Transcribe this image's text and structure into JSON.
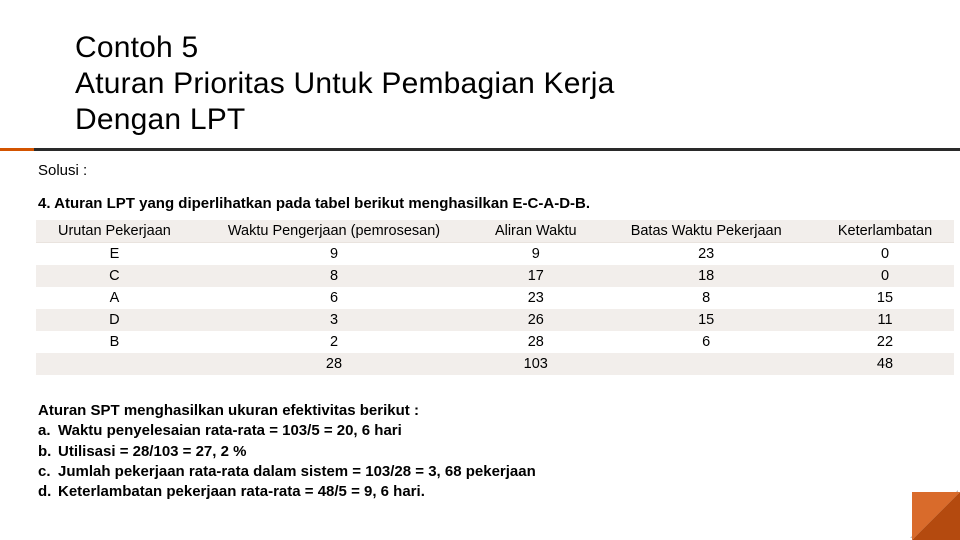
{
  "title": {
    "line1": "Contoh 5",
    "line2": "Aturan Prioritas Untuk Pembagian Kerja",
    "line3": "Dengan LPT"
  },
  "solusi_label": "Solusi :",
  "rule_line": "4. Aturan LPT yang diperlihatkan pada tabel berikut menghasilkan E-C-A-D-B.",
  "table": {
    "headers": [
      "Urutan Pekerjaan",
      "Waktu Pengerjaan (pemrosesan)",
      "Aliran Waktu",
      "Batas Waktu Pekerjaan",
      "Keterlambatan"
    ],
    "rows": [
      [
        "E",
        "9",
        "9",
        "23",
        "0"
      ],
      [
        "C",
        "8",
        "17",
        "18",
        "0"
      ],
      [
        "A",
        "6",
        "23",
        "8",
        "15"
      ],
      [
        "D",
        "3",
        "26",
        "15",
        "11"
      ],
      [
        "B",
        "2",
        "28",
        "6",
        "22"
      ],
      [
        "",
        "28",
        "103",
        "",
        "48"
      ]
    ],
    "col_widths": [
      "150px",
      "270px",
      "116px",
      "210px",
      "132px"
    ]
  },
  "summary": {
    "header": "Aturan SPT menghasilkan ukuran efektivitas berikut :",
    "items": [
      {
        "lbl": "a.",
        "txt": "Waktu penyelesaian rata-rata = 103/5 = 20, 6 hari"
      },
      {
        "lbl": "b.",
        "txt": "Utilisasi = 28/103 = 27, 2 %"
      },
      {
        "lbl": "c.",
        "txt": "Jumlah pekerjaan rata-rata dalam sistem = 103/28 = 3, 68 pekerjaan"
      },
      {
        "lbl": "d.",
        "txt": "Keterlambatan pekerjaan rata-rata = 48/5 = 9, 6 hari."
      }
    ]
  },
  "colors": {
    "accent": "#d35400",
    "bar": "#2a2a2a",
    "tbl_band": "#f2eeeb",
    "corner_dark": "#b44a0f",
    "corner_light": "#d96b2b"
  }
}
